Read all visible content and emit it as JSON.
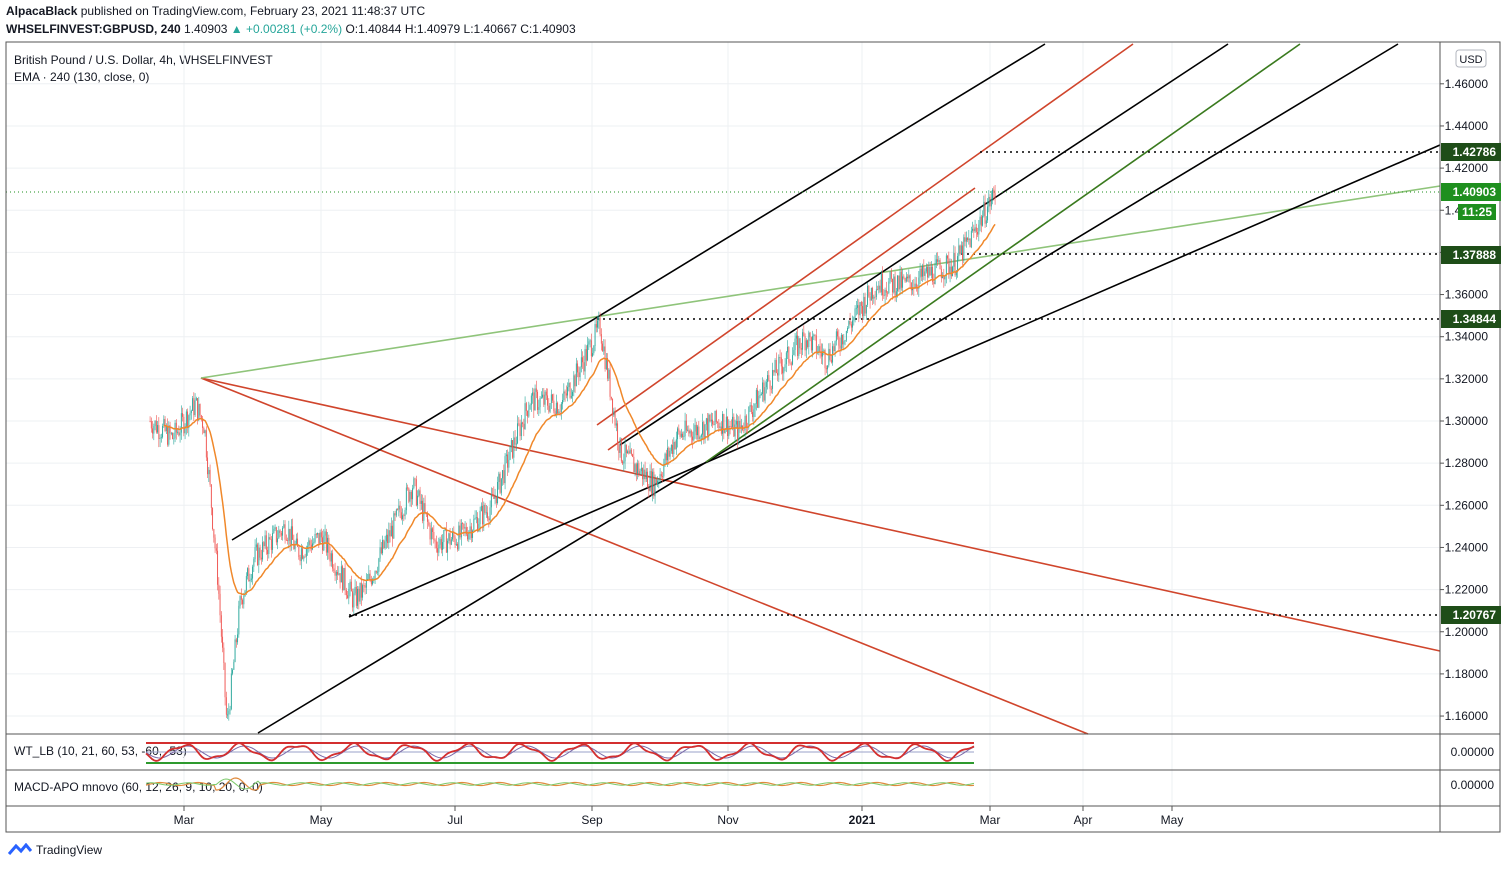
{
  "header": {
    "author": "AlpacaBlack",
    "published_text": "published on TradingView.com, February 23, 2021 11:48:37 UTC",
    "symbol": "WHSELFINVEST:GBPUSD, 240",
    "last": "1.40903",
    "change": "+0.00281 (+0.2%)",
    "ohlc": "O:1.40844 H:1.40979 L:1.40667 C:1.40903"
  },
  "pane": {
    "title": "British Pound / U.S. Dollar, 4h, WHSELFINVEST",
    "ema_label": "EMA · 240 (130, close, 0)",
    "wt_label": "WT_LB (10, 21, 60, 53, -60, -53)",
    "macd_label": "MACD-APO mnovo (60, 12, 26, 9, 10, 20, 0, 0)",
    "currency": "USD",
    "countdown": "11:25",
    "footer_brand": "TradingView"
  },
  "colors": {
    "up": "#26a69a",
    "down": "#ef5350",
    "ema": "#f0882a",
    "red_line": "#d0452c",
    "black_line": "#000000",
    "green_line": "#3a7a1e",
    "light_green_line": "#8fc47a",
    "dark_label": "#1e4d18",
    "price_label": "#1e8f1e"
  },
  "chart_data": {
    "type": "candlestick",
    "x_ticks": [
      "Mar",
      "May",
      "Jul",
      "Sep",
      "Nov",
      "2021",
      "Mar",
      "Apr",
      "May"
    ],
    "y_ticks": [
      "1.46000",
      "1.44000",
      "1.42000",
      "1.40000",
      "1.38000",
      "1.36000",
      "1.34000",
      "1.32000",
      "1.30000",
      "1.28000",
      "1.26000",
      "1.24000",
      "1.22000",
      "1.20000",
      "1.18000",
      "1.16000"
    ],
    "y_range": [
      1.1525,
      1.4825
    ],
    "price_level_labels": [
      "1.42786",
      "1.40903",
      "1.37888",
      "1.34844",
      "1.20767"
    ],
    "wt_ticks": [
      "0.00000"
    ],
    "macd_ticks": [
      "0.00000"
    ],
    "approx_closes": [
      [
        "2020-02-15",
        1.3
      ],
      [
        "2020-02-25",
        1.292
      ],
      [
        "2020-03-06",
        1.308
      ],
      [
        "2020-03-10",
        1.298
      ],
      [
        "2020-03-16",
        1.225
      ],
      [
        "2020-03-20",
        1.155
      ],
      [
        "2020-03-26",
        1.215
      ],
      [
        "2020-04-01",
        1.235
      ],
      [
        "2020-04-15",
        1.25
      ],
      [
        "2020-04-20",
        1.238
      ],
      [
        "2020-05-01",
        1.245
      ],
      [
        "2020-05-15",
        1.215
      ],
      [
        "2020-05-20",
        1.22
      ],
      [
        "2020-06-10",
        1.27
      ],
      [
        "2020-06-20",
        1.242
      ],
      [
        "2020-07-01",
        1.245
      ],
      [
        "2020-07-15",
        1.26
      ],
      [
        "2020-08-01",
        1.31
      ],
      [
        "2020-08-15",
        1.308
      ],
      [
        "2020-09-01",
        1.345
      ],
      [
        "2020-09-10",
        1.285
      ],
      [
        "2020-09-25",
        1.27
      ],
      [
        "2020-10-05",
        1.293
      ],
      [
        "2020-10-25",
        1.3
      ],
      [
        "2020-11-01",
        1.295
      ],
      [
        "2020-11-15",
        1.32
      ],
      [
        "2020-12-01",
        1.34
      ],
      [
        "2020-12-10",
        1.33
      ],
      [
        "2020-12-20",
        1.345
      ],
      [
        "2021-01-01",
        1.365
      ],
      [
        "2021-01-15",
        1.365
      ],
      [
        "2021-01-25",
        1.37
      ],
      [
        "2021-02-05",
        1.375
      ],
      [
        "2021-02-12",
        1.387
      ],
      [
        "2021-02-23",
        1.40903
      ]
    ]
  }
}
